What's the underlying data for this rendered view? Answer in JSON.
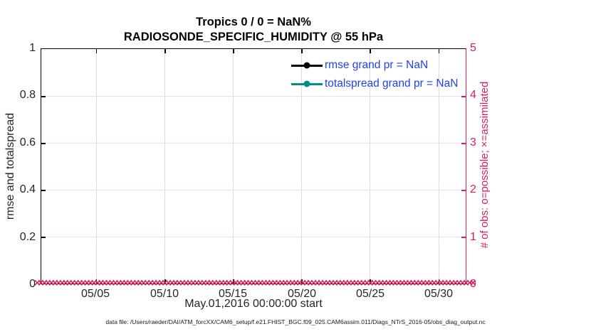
{
  "chart_data": {
    "type": "line",
    "title": "Tropics 0 / 0 = NaN%",
    "subtitle": "RADIOSONDE_SPECIFIC_HUMIDITY @ 55 hPa",
    "xlabel": "May.01,2016 00:00:00 start",
    "ylabel_left": "rmse and totalspread",
    "ylabel_right": "# of obs: o=possible; ×=assimilated",
    "x_range": [
      "2016-05-01 00:00",
      "2016-06-01 00:00"
    ],
    "x_ticks": [
      "05/05",
      "05/10",
      "05/15",
      "05/20",
      "05/25",
      "05/30"
    ],
    "ylim_left": [
      0,
      1
    ],
    "y_ticks_left": [
      "0",
      "0.2",
      "0.4",
      "0.6",
      "0.8",
      "1"
    ],
    "ylim_right": [
      0,
      5
    ],
    "y_ticks_right": [
      "0",
      "1",
      "2",
      "3",
      "4",
      "5"
    ],
    "grid": true,
    "legend_position": "upper right",
    "series": [
      {
        "name": "rmse grand pr = NaN",
        "color": "#000000",
        "values": "NaN (no line plotted)"
      },
      {
        "name": "totalspread grand pr = NaN",
        "color": "#008f85",
        "values": "NaN (no line plotted)"
      }
    ],
    "obs_markers": {
      "description": "observation count markers plotted along y=0 on right axis scale",
      "symbol": "×",
      "color": "#d81e5f",
      "value": 0,
      "count": 124
    }
  },
  "legend": {
    "items": [
      {
        "label": "rmse grand pr = NaN",
        "color": "#000000"
      },
      {
        "label": "totalspread grand pr = NaN",
        "color": "#008f85"
      }
    ],
    "text_color": "#2240ee"
  },
  "caption": "data file: /Users/raeder/DAI/ATM_forcXX/CAM6_setup/f.e21.FHIST_BGC.f09_025.CAM6assim.011/Diags_NTrS_2016-05/obs_diag_output.nc",
  "colors": {
    "accent_pink": "#d81e5f",
    "series_teal": "#008f85",
    "legend_blue": "#2240ee",
    "grid_vertical": "#dcdce0",
    "grid_horizontal": "#f5d9e3",
    "axis_black": "#000000",
    "tick_text": "#262626"
  }
}
